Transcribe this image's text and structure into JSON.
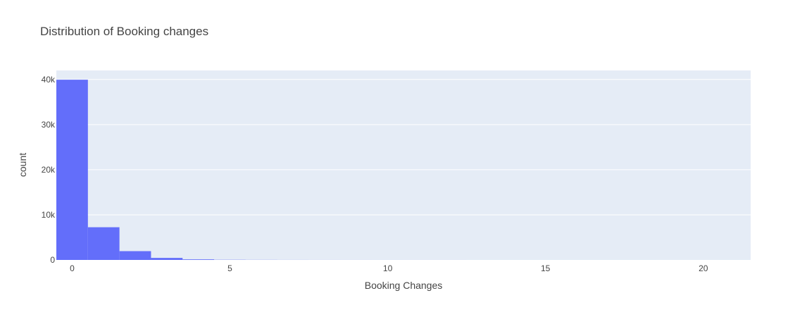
{
  "chart_data": {
    "type": "bar",
    "title": "Distribution of Booking changes",
    "xlabel": "Booking Changes",
    "ylabel": "count",
    "xlim": [
      -0.5,
      21.5
    ],
    "ylim": [
      0,
      42000
    ],
    "bin_width": 1,
    "x": [
      0,
      1,
      2,
      3,
      4,
      5,
      6,
      7,
      8,
      9,
      10,
      11,
      12,
      13,
      14,
      15,
      16,
      17,
      18,
      19,
      20,
      21
    ],
    "values": [
      39950,
      7250,
      1950,
      450,
      130,
      40,
      20,
      10,
      6,
      4,
      3,
      2,
      2,
      1,
      1,
      1,
      1,
      1,
      1,
      0,
      0,
      1
    ],
    "x_ticks": [
      0,
      5,
      10,
      15,
      20
    ],
    "x_tick_labels": [
      "0",
      "5",
      "10",
      "15",
      "20"
    ],
    "y_ticks": [
      0,
      10000,
      20000,
      30000,
      40000
    ],
    "y_tick_labels": [
      "0",
      "10k",
      "20k",
      "30k",
      "40k"
    ],
    "grid": true,
    "colors": {
      "bar": "#636efa",
      "plot_bg": "#e5ecf6",
      "grid": "#ffffff",
      "text": "#444444"
    }
  }
}
